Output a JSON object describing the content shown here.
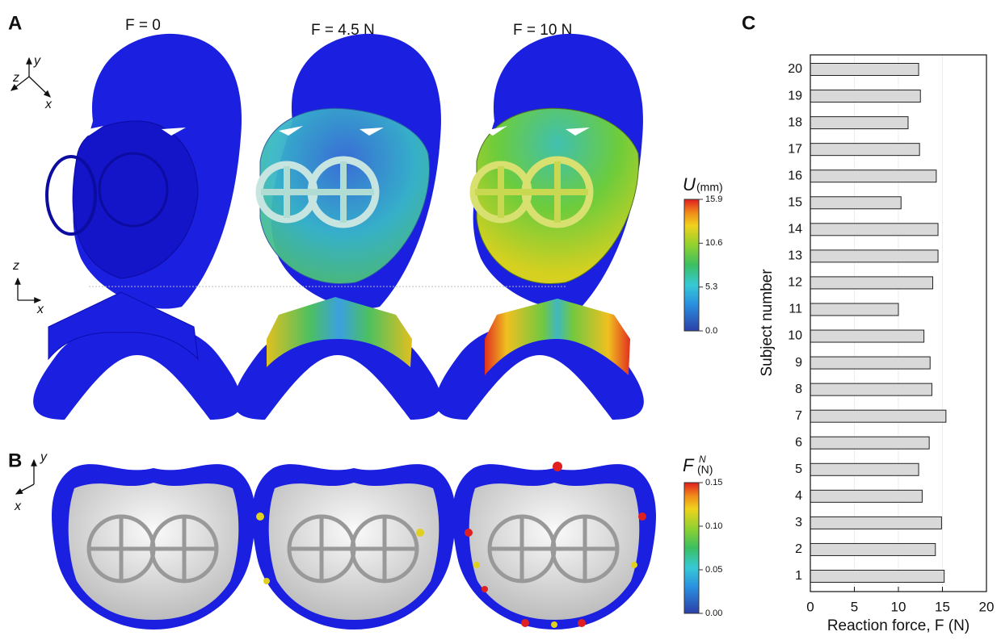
{
  "panel_a": {
    "label": "A",
    "columns": [
      "F = 0",
      "F = 4.5 N",
      "F = 10 N"
    ],
    "axes_top": [
      "z",
      "y",
      "x"
    ],
    "axes_side": [
      "z",
      "x"
    ],
    "colorbar": {
      "symbol": "U",
      "unit": "(mm)",
      "lim": [
        0,
        15.9
      ],
      "ticks": [
        15.9,
        10.6,
        5.3,
        {
          "value": 0,
          "label": "0.0"
        }
      ]
    }
  },
  "panel_b": {
    "label": "B",
    "axes": [
      "y",
      "x"
    ],
    "colorbar": {
      "symbol": "F",
      "superscript": "N",
      "unit": "(N)",
      "lim": [
        0,
        0.15
      ],
      "ticks": [
        0.15,
        {
          "value": 0.1,
          "label": "0.10"
        },
        0.05,
        {
          "value": 0,
          "label": "0.00"
        }
      ]
    }
  },
  "chart_data": {
    "type": "barh",
    "panel_label": "C",
    "xlabel": "Reaction force, F (N)",
    "ylabel": "Subject number",
    "categories": [
      "1",
      "2",
      "3",
      "4",
      "5",
      "6",
      "7",
      "8",
      "9",
      "10",
      "11",
      "12",
      "13",
      "14",
      "15",
      "16",
      "17",
      "18",
      "19",
      "20"
    ],
    "values": [
      15.2,
      14.2,
      14.9,
      12.7,
      12.3,
      13.5,
      15.4,
      13.8,
      13.6,
      12.9,
      10.0,
      13.9,
      14.5,
      14.5,
      10.3,
      14.3,
      12.4,
      11.1,
      12.5,
      12.3
    ],
    "color": "#d9d9d9",
    "xlim": [
      0,
      20
    ],
    "xticks": [
      0,
      5,
      10,
      15,
      20
    ],
    "grid": true
  }
}
